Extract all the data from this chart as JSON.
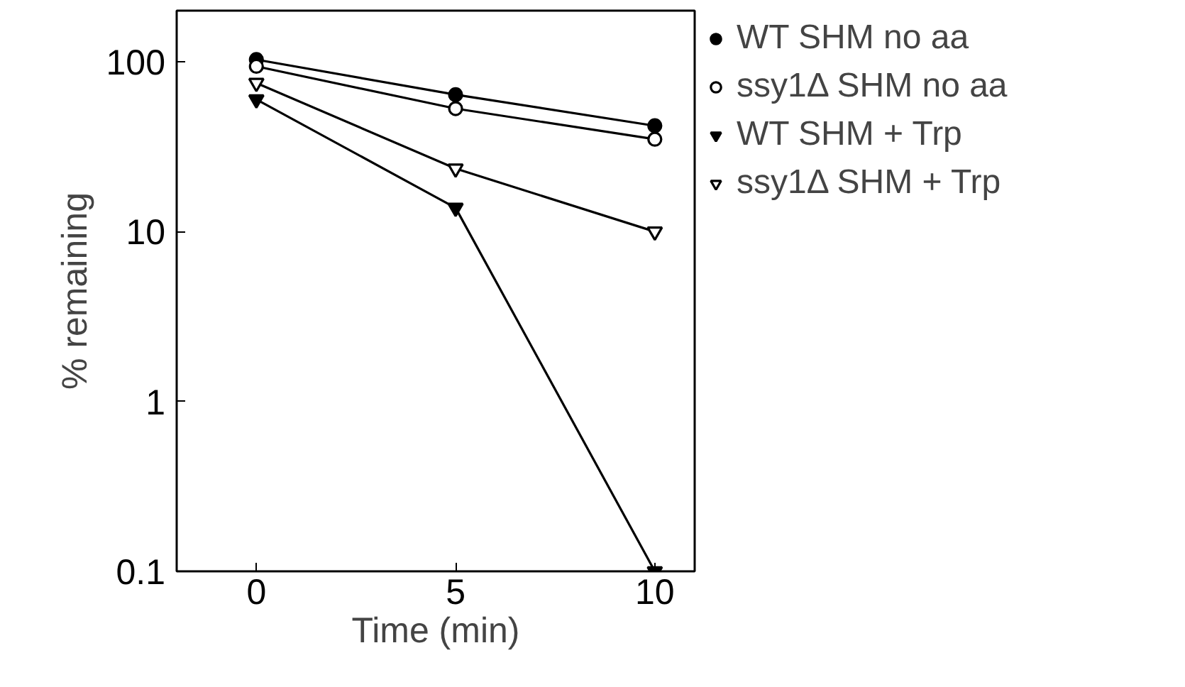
{
  "chart_data": {
    "type": "line",
    "xlabel": "Time (min)",
    "ylabel": "% remaining",
    "x": [
      0,
      5,
      10
    ],
    "xlim": [
      -2,
      11
    ],
    "xticks": [
      0,
      5,
      10
    ],
    "ylim": [
      0.1,
      200
    ],
    "yticks": [
      0.1,
      1,
      10,
      100
    ],
    "log": true,
    "grid": false,
    "legend": "right",
    "line_style": "solid",
    "series": [
      {
        "name": "WT SHM no aa",
        "color": "#000000",
        "marker": "circle",
        "values": [
          103,
          64,
          42
        ]
      },
      {
        "name": "ssy1Δ SHM no aa",
        "color": "#ffffff",
        "marker": "circle",
        "values": [
          94,
          53,
          35
        ]
      },
      {
        "name": "WT SHM + Trp",
        "color": "#000000",
        "marker": "triangle",
        "values": [
          60,
          13.8,
          0.1
        ]
      },
      {
        "name": "ssy1Δ SHM + Trp",
        "color": "#ffffff",
        "marker": "triangle",
        "values": [
          75,
          23.5,
          10
        ]
      }
    ]
  }
}
